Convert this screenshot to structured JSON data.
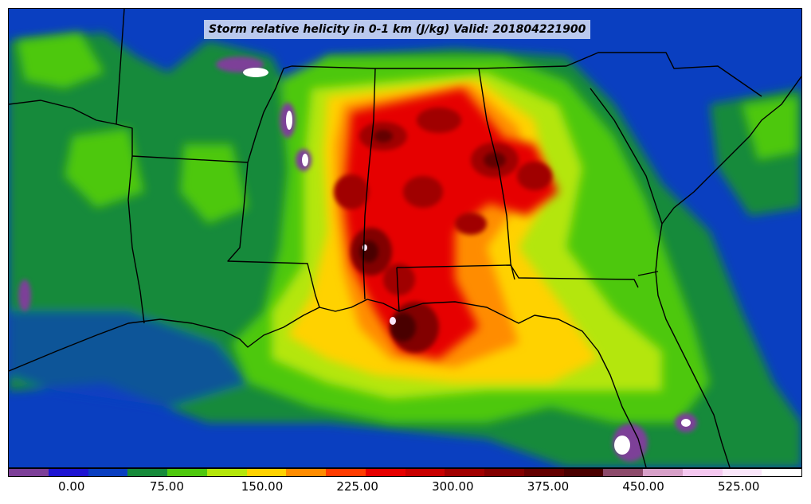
{
  "map": {
    "title": "Storm relative helicity in 0-1 km (J/kg) Valid: 201804221900",
    "variable": "Storm relative helicity 0-1 km",
    "units": "J/kg",
    "valid_time": "201804221900",
    "region": "Southeastern United States and Gulf of Mexico",
    "boundaries": [
      "state-lines",
      "coastlines"
    ]
  },
  "colorbar": {
    "colors": [
      "#7d3f98",
      "#1e14d2",
      "#0a3fc0",
      "#168a3a",
      "#4ec80e",
      "#b4e60a",
      "#ffd200",
      "#ff8c00",
      "#ff3c00",
      "#e60000",
      "#c80000",
      "#a00000",
      "#820000",
      "#640000",
      "#4a0000",
      "#8c4a6a",
      "#d7a0c8",
      "#f5c8f0",
      "#fae6fa",
      "#ffffff"
    ],
    "min": -50,
    "max": 575,
    "tick_values": [
      0,
      75,
      150,
      225,
      300,
      375,
      450,
      525
    ],
    "tick_labels": [
      "0.00",
      "75.00",
      "150.00",
      "225.00",
      "300.00",
      "375.00",
      "450.00",
      "525.00"
    ]
  }
}
